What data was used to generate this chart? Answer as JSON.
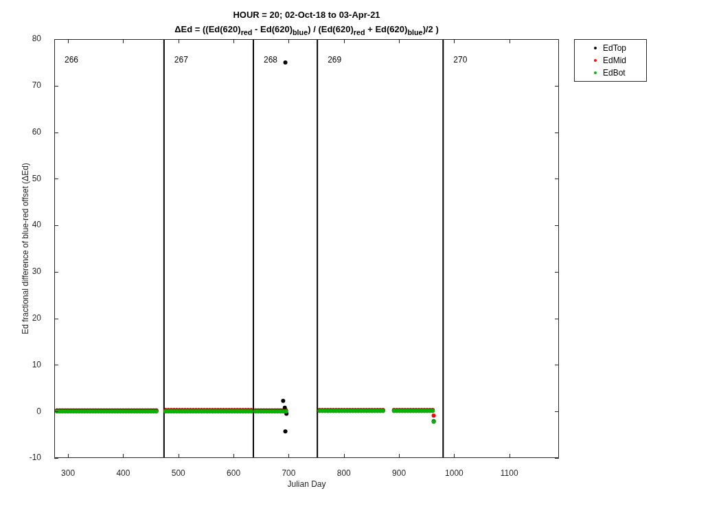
{
  "chart_data": {
    "type": "scatter",
    "title": "HOUR = 20; 02-Oct-18 to 03-Apr-21",
    "subtitle": "ΔEd = ((Ed(620)$_{red}$ - Ed(620)$_{blue}$) / (Ed(620)$_{red}$ + Ed(620)$_{blue}$)/2 )",
    "xlabel": "Julian Day",
    "ylabel": "Ed fractional difference of blue-red offset (ΔEd)",
    "x": [
      280,
      285,
      290,
      295,
      300,
      305,
      310,
      315,
      320,
      325,
      330,
      335,
      340,
      345,
      350,
      355,
      360,
      365,
      370,
      375,
      380,
      385,
      390,
      395,
      400,
      405,
      410,
      415,
      420,
      425,
      430,
      435,
      440,
      445,
      450,
      455,
      460,
      477,
      482,
      487,
      492,
      497,
      502,
      507,
      512,
      517,
      522,
      527,
      532,
      537,
      542,
      547,
      552,
      557,
      562,
      567,
      572,
      577,
      582,
      587,
      592,
      597,
      602,
      607,
      612,
      617,
      622,
      627,
      632,
      640,
      645,
      650,
      655,
      660,
      665,
      670,
      675,
      680,
      685,
      690,
      695,
      756,
      761,
      766,
      771,
      776,
      781,
      786,
      791,
      796,
      801,
      806,
      811,
      816,
      821,
      826,
      831,
      836,
      841,
      846,
      851,
      856,
      861,
      866,
      871,
      891,
      896,
      901,
      906,
      911,
      916,
      921,
      926,
      931,
      936,
      941,
      946,
      951,
      956,
      961,
      963
    ],
    "series": [
      {
        "name": "EdTop",
        "color": "#000000",
        "x": [
          280,
          285,
          290,
          295,
          300,
          305,
          310,
          315,
          320,
          325,
          330,
          335,
          340,
          345,
          350,
          355,
          360,
          365,
          370,
          375,
          380,
          385,
          390,
          395,
          400,
          405,
          410,
          415,
          420,
          425,
          430,
          435,
          440,
          445,
          450,
          455,
          460,
          477,
          482,
          487,
          492,
          497,
          502,
          507,
          512,
          517,
          522,
          527,
          532,
          537,
          542,
          547,
          552,
          557,
          562,
          567,
          572,
          577,
          582,
          587,
          592,
          597,
          602,
          607,
          612,
          617,
          622,
          627,
          632,
          640,
          645,
          650,
          655,
          660,
          665,
          670,
          675,
          680,
          685,
          690,
          690,
          693,
          694,
          694,
          695,
          696,
          756,
          761,
          766,
          771,
          776,
          781,
          786,
          791,
          796,
          801,
          806,
          811,
          816,
          821,
          826,
          831,
          836,
          841,
          846,
          851,
          856,
          861,
          866,
          871,
          891,
          896,
          901,
          906,
          911,
          916,
          921,
          926,
          931,
          936,
          941,
          946,
          951,
          956,
          961,
          963
        ],
        "values": [
          0.2,
          0.2,
          0.2,
          0.2,
          0.2,
          0.2,
          0.2,
          0.2,
          0.2,
          0.2,
          0.2,
          0.2,
          0.2,
          0.2,
          0.2,
          0.2,
          0.2,
          0.2,
          0.2,
          0.2,
          0.2,
          0.2,
          0.2,
          0.2,
          0.2,
          0.2,
          0.2,
          0.2,
          0.2,
          0.2,
          0.2,
          0.2,
          0.2,
          0.2,
          0.2,
          0.2,
          0.2,
          0.3,
          0.3,
          0.3,
          0.3,
          0.3,
          0.3,
          0.3,
          0.3,
          0.3,
          0.3,
          0.3,
          0.3,
          0.3,
          0.3,
          0.3,
          0.3,
          0.3,
          0.3,
          0.3,
          0.3,
          0.3,
          0.3,
          0.3,
          0.3,
          0.3,
          0.3,
          0.3,
          0.3,
          0.3,
          0.3,
          0.3,
          0.3,
          0.2,
          0.2,
          0.2,
          0.2,
          0.2,
          0.2,
          0.2,
          0.2,
          0.2,
          0.2,
          0.2,
          2.3,
          0.8,
          75,
          -4.3,
          0.2,
          -0.5,
          0.3,
          0.3,
          0.3,
          0.3,
          0.3,
          0.3,
          0.3,
          0.3,
          0.3,
          0.3,
          0.3,
          0.3,
          0.3,
          0.3,
          0.3,
          0.3,
          0.3,
          0.3,
          0.3,
          0.3,
          0.3,
          0.3,
          0.3,
          0.3,
          0.3,
          0.3,
          0.3,
          0.3,
          0.3,
          0.3,
          0.3,
          0.3,
          0.3,
          0.3,
          0.3,
          0.3,
          0.3,
          0.3,
          0.3,
          -2.1
        ]
      },
      {
        "name": "EdMid",
        "color": "#ff0000",
        "values": [
          0.1,
          0.1,
          0.1,
          0.1,
          0.1,
          0.1,
          0.1,
          0.1,
          0.1,
          0.1,
          0.1,
          0.1,
          0.1,
          0.1,
          0.1,
          0.1,
          0.1,
          0.1,
          0.1,
          0.1,
          0.1,
          0.1,
          0.1,
          0.1,
          0.1,
          0.1,
          0.1,
          0.1,
          0.1,
          0.1,
          0.1,
          0.1,
          0.1,
          0.1,
          0.1,
          0.1,
          0.1,
          0.2,
          0.2,
          0.2,
          0.2,
          0.2,
          0.2,
          0.2,
          0.2,
          0.2,
          0.2,
          0.2,
          0.2,
          0.2,
          0.2,
          0.2,
          0.2,
          0.2,
          0.2,
          0.2,
          0.2,
          0.2,
          0.2,
          0.2,
          0.2,
          0.2,
          0.2,
          0.2,
          0.2,
          0.2,
          0.2,
          0.2,
          0.2,
          0.1,
          0.1,
          0.1,
          0.1,
          0.1,
          0.1,
          0.1,
          0.1,
          0.1,
          0.1,
          0.1,
          0.1,
          0.2,
          0.2,
          0.2,
          0.2,
          0.2,
          0.2,
          0.2,
          0.2,
          0.2,
          0.2,
          0.2,
          0.2,
          0.2,
          0.2,
          0.2,
          0.2,
          0.2,
          0.2,
          0.2,
          0.2,
          0.2,
          0.2,
          0.2,
          0.2,
          0.2,
          0.2,
          0.2,
          0.2,
          0.2,
          0.2,
          0.2,
          0.2,
          0.2,
          0.2,
          0.2,
          0.2,
          0.2,
          0.2,
          0.2,
          -0.9
        ]
      },
      {
        "name": "EdBot",
        "color": "#00b400",
        "values": [
          0,
          0,
          0,
          0,
          0,
          0,
          0,
          0,
          0,
          0,
          0,
          0,
          0,
          0,
          0,
          0,
          0,
          0,
          0,
          0,
          0,
          0,
          0,
          0,
          0,
          0,
          0,
          0,
          0,
          0,
          0,
          0,
          0,
          0,
          0,
          0,
          0,
          0,
          0,
          0,
          0,
          0,
          0,
          0,
          0,
          0,
          0,
          0,
          0,
          0,
          0,
          0,
          0,
          0,
          0,
          0,
          0,
          0,
          0,
          0,
          0,
          0,
          0,
          0,
          0,
          0,
          0,
          0,
          0,
          0,
          0,
          0,
          0,
          0,
          0,
          0,
          0,
          0,
          0,
          0,
          0,
          0.1,
          0.1,
          0.1,
          0.1,
          0.1,
          0.1,
          0.1,
          0.1,
          0.1,
          0.1,
          0.1,
          0.1,
          0.1,
          0.1,
          0.1,
          0.1,
          0.1,
          0.1,
          0.1,
          0.1,
          0.1,
          0.1,
          0.1,
          0.1,
          0.1,
          0.1,
          0.1,
          0.1,
          0.1,
          0.1,
          0.1,
          0.1,
          0.1,
          0.1,
          0.1,
          0.1,
          0.1,
          0.1,
          0.1,
          -2.2
        ]
      }
    ],
    "xlim": [
      275,
      1190
    ],
    "ylim": [
      -10,
      80
    ],
    "xticks": [
      300,
      400,
      500,
      600,
      700,
      800,
      900,
      1000,
      1100
    ],
    "yticks": [
      -10,
      0,
      10,
      20,
      30,
      40,
      50,
      60,
      70,
      80
    ],
    "ref_lines": [
      {
        "axis": "x",
        "value": 474,
        "color": "#000000"
      },
      {
        "axis": "x",
        "value": 636,
        "color": "#000000"
      },
      {
        "axis": "x",
        "value": 752,
        "color": "#000000"
      },
      {
        "axis": "x",
        "value": 980,
        "color": "#000000"
      }
    ],
    "annotations": [
      "266",
      "267",
      "268",
      "269",
      "270"
    ],
    "legend": "top right",
    "marker": "circle"
  }
}
